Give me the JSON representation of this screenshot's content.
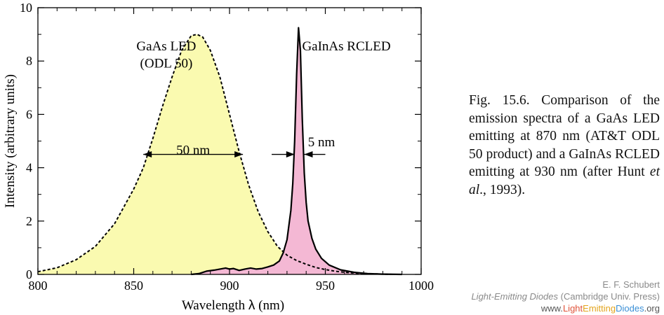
{
  "chart_data": {
    "type": "line",
    "xlabel_text": "Wavelength",
    "xlabel_symbol": "λ",
    "xlabel_unit": "(nm)",
    "ylabel": "Intensity  (arbitrary units)",
    "xlim": [
      800,
      1000
    ],
    "ylim": [
      0,
      10
    ],
    "x_ticks": [
      800,
      850,
      900,
      950,
      1000
    ],
    "y_ticks": [
      0,
      2,
      4,
      6,
      8,
      10
    ],
    "grid": false,
    "series": [
      {
        "name": "GaAs LED (ODL 50)",
        "style": "dashed",
        "fill": "#fafab0",
        "x": [
          800,
          810,
          820,
          830,
          840,
          850,
          855,
          860,
          865,
          870,
          875,
          880,
          883,
          886,
          890,
          895,
          900,
          905,
          910,
          915,
          920,
          925,
          930,
          935,
          940,
          945,
          950,
          955,
          960,
          965,
          970,
          975,
          980,
          985,
          990
        ],
        "values": [
          0.1,
          0.25,
          0.55,
          1.05,
          1.9,
          3.2,
          4.0,
          5.1,
          6.3,
          7.4,
          8.4,
          8.95,
          9.0,
          8.9,
          8.4,
          7.4,
          6.0,
          4.6,
          3.35,
          2.35,
          1.6,
          1.05,
          0.72,
          0.52,
          0.38,
          0.26,
          0.18,
          0.12,
          0.08,
          0.05,
          0.03,
          0.02,
          0.01,
          0.0,
          0.0
        ]
      },
      {
        "name": "GaInAs RCLED",
        "style": "solid",
        "fill": "#f4b8d4",
        "x": [
          880,
          884,
          888,
          892,
          895,
          898,
          900,
          902,
          905,
          908,
          911,
          914,
          917,
          920,
          923,
          926,
          928,
          930,
          932,
          933,
          934,
          935,
          936,
          937,
          938,
          939,
          940,
          941,
          943,
          945,
          948,
          952,
          958,
          965,
          972,
          980,
          990
        ],
        "values": [
          0.0,
          0.03,
          0.12,
          0.16,
          0.2,
          0.24,
          0.2,
          0.22,
          0.15,
          0.2,
          0.24,
          0.2,
          0.22,
          0.28,
          0.35,
          0.5,
          0.8,
          1.3,
          2.4,
          3.4,
          5.0,
          7.5,
          9.25,
          8.4,
          5.8,
          3.8,
          2.7,
          2.0,
          1.35,
          0.95,
          0.6,
          0.35,
          0.17,
          0.08,
          0.03,
          0.01,
          0.0
        ]
      }
    ],
    "annotations": [
      {
        "text": "GaAs LED",
        "x": 867,
        "y": 8.4
      },
      {
        "text": "(ODL 50)",
        "x": 867,
        "y": 7.75
      },
      {
        "text": "GaInAs RCLED",
        "x": 961,
        "y": 8.4
      },
      {
        "text": "50 nm",
        "x": 881,
        "y": 4.5
      },
      {
        "text": "5 nm",
        "x": 948,
        "y": 4.8
      }
    ],
    "fwhm_markers": [
      {
        "label": "50 nm",
        "from": 855,
        "to": 907,
        "y": 4.5,
        "style": "double-arrow"
      },
      {
        "label": "5 nm",
        "left_arrow_from": 922,
        "left_arrow_to": 934,
        "right_arrow_from": 950,
        "right_arrow_to": 939,
        "y": 4.5,
        "style": "outer-arrows"
      }
    ]
  },
  "caption": {
    "part1": "Fig. 15.6. Comparison of the emission spectra of a GaAs LED emitting at 870 nm (AT&T ODL 50 product) and a GaInAs RCLED emitting at 930 nm (after Hunt ",
    "italic": "et al",
    "part2": "., 1993)."
  },
  "credit": {
    "author": "E. F. Schubert",
    "book_title": "Light-Emitting Diodes",
    "publisher": "(Cambridge Univ. Press)",
    "url_prefix": "www.",
    "url_light": "Light",
    "url_emitting": "Emitting",
    "url_diodes": "Diodes",
    "url_suffix": ".org"
  }
}
